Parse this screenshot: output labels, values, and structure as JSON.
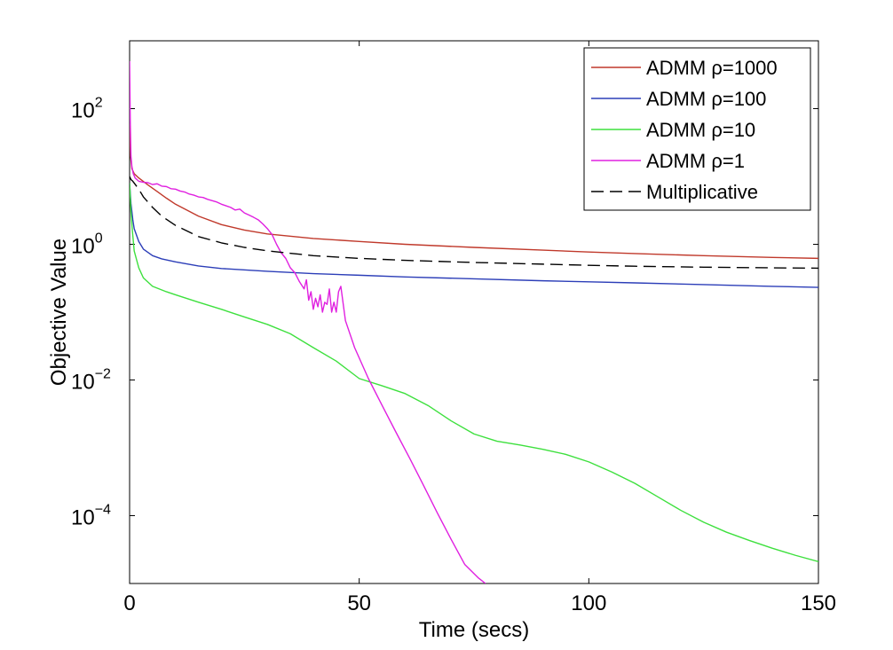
{
  "chart_data": {
    "type": "line",
    "title": "",
    "xlabel": "Time (secs)",
    "ylabel": "Objective Value",
    "xscale": "linear",
    "yscale": "log",
    "xlim": [
      0,
      150
    ],
    "ylim": [
      1e-05,
      1000
    ],
    "xticks": [
      0,
      50,
      100,
      150
    ],
    "xtick_labels": [
      "0",
      "50",
      "100",
      "150"
    ],
    "yticks": [
      0.0001,
      0.01,
      1,
      100
    ],
    "ytick_labels": [
      {
        "base": "10",
        "exp": "−4"
      },
      {
        "base": "10",
        "exp": "−2"
      },
      {
        "base": "10",
        "exp": "0"
      },
      {
        "base": "10",
        "exp": "2"
      }
    ],
    "grid": false,
    "legend_position": "top-right",
    "series": [
      {
        "name": "ADMM ρ=1000",
        "color": "#c0392b",
        "dash": "solid",
        "x": [
          0,
          0.2,
          0.5,
          1,
          2,
          4,
          6,
          8,
          10,
          15,
          20,
          25,
          30,
          40,
          50,
          60,
          75,
          90,
          100,
          110,
          125,
          140,
          150
        ],
        "y": [
          60,
          20,
          13,
          11,
          9.5,
          7.5,
          6,
          4.8,
          3.9,
          2.6,
          1.95,
          1.62,
          1.42,
          1.22,
          1.1,
          1.0,
          0.9,
          0.82,
          0.77,
          0.73,
          0.68,
          0.64,
          0.62
        ]
      },
      {
        "name": "ADMM ρ=100",
        "color": "#2c3eb8",
        "dash": "solid",
        "x": [
          0,
          0.3,
          0.7,
          1,
          2,
          3,
          5,
          7,
          10,
          15,
          20,
          30,
          40,
          50,
          60,
          75,
          90,
          100,
          110,
          125,
          140,
          150
        ],
        "y": [
          8,
          4,
          2.3,
          1.7,
          1.1,
          0.85,
          0.68,
          0.61,
          0.55,
          0.48,
          0.44,
          0.4,
          0.37,
          0.35,
          0.33,
          0.31,
          0.29,
          0.28,
          0.27,
          0.255,
          0.24,
          0.232
        ]
      },
      {
        "name": "ADMM ρ=10",
        "color": "#3ee03e",
        "dash": "solid",
        "x": [
          0,
          0.3,
          0.6,
          1,
          2,
          3,
          5,
          8,
          10,
          15,
          20,
          25,
          30,
          35,
          40,
          45,
          50,
          55,
          60,
          65,
          70,
          75,
          80,
          85,
          90,
          95,
          100,
          105,
          110,
          115,
          120,
          125,
          130,
          135,
          140,
          145,
          150
        ],
        "y": [
          8,
          3,
          1.6,
          0.8,
          0.45,
          0.32,
          0.24,
          0.2,
          0.18,
          0.14,
          0.11,
          0.085,
          0.066,
          0.048,
          0.03,
          0.019,
          0.0105,
          0.0082,
          0.0063,
          0.0042,
          0.0025,
          0.0016,
          0.00125,
          0.0011,
          0.00095,
          0.0008,
          0.00062,
          0.00044,
          0.0003,
          0.00019,
          0.00012,
          8e-05,
          5.7e-05,
          4.3e-05,
          3.3e-05,
          2.6e-05,
          2.1e-05
        ]
      },
      {
        "name": "ADMM ρ=1",
        "color": "#e020e0",
        "dash": "solid",
        "x": [
          0,
          0.15,
          0.3,
          0.5,
          0.8,
          1.2,
          2,
          3,
          4,
          5,
          6,
          7,
          8,
          9,
          10,
          11,
          12,
          13,
          14,
          15,
          16,
          17,
          18,
          19,
          20,
          21,
          22,
          23,
          24,
          25,
          26,
          27,
          28,
          29,
          30,
          31,
          32,
          33,
          34,
          35,
          36,
          37,
          38,
          38.5,
          39,
          39.5,
          40,
          40.5,
          41,
          41.5,
          42,
          42.5,
          43,
          43.5,
          44,
          44.5,
          45,
          45.5,
          46,
          47,
          49,
          52,
          55,
          58,
          61,
          64,
          67,
          70,
          73,
          76,
          77.5
        ],
        "y": [
          500,
          60,
          20,
          14,
          11,
          9.5,
          8.5,
          8.2,
          8.1,
          7.6,
          7.8,
          7.2,
          7.1,
          6.6,
          6.5,
          6.1,
          5.9,
          5.5,
          5.3,
          5.0,
          4.9,
          4.6,
          4.4,
          4.2,
          3.9,
          3.7,
          3.5,
          3.2,
          3.3,
          2.9,
          2.7,
          2.5,
          2.3,
          2.0,
          1.7,
          1.4,
          1.0,
          0.75,
          0.62,
          0.45,
          0.38,
          0.28,
          0.22,
          0.3,
          0.15,
          0.2,
          0.11,
          0.16,
          0.12,
          0.18,
          0.1,
          0.14,
          0.13,
          0.22,
          0.1,
          0.14,
          0.1,
          0.2,
          0.24,
          0.075,
          0.03,
          0.0105,
          0.0042,
          0.0017,
          0.0007,
          0.00028,
          0.00011,
          4.5e-05,
          1.9e-05,
          1.2e-05,
          1e-05
        ]
      },
      {
        "name": "Multiplicative",
        "color": "#000000",
        "dash": "dashed",
        "x": [
          0,
          0.3,
          0.7,
          1,
          2,
          3,
          5,
          7,
          10,
          15,
          20,
          25,
          30,
          40,
          50,
          60,
          75,
          90,
          100,
          110,
          125,
          140,
          150
        ],
        "y": [
          10,
          9,
          8.5,
          8,
          6.5,
          5,
          3.5,
          2.6,
          1.9,
          1.3,
          1.05,
          0.9,
          0.8,
          0.68,
          0.62,
          0.58,
          0.54,
          0.51,
          0.49,
          0.475,
          0.46,
          0.45,
          0.445
        ]
      }
    ]
  }
}
